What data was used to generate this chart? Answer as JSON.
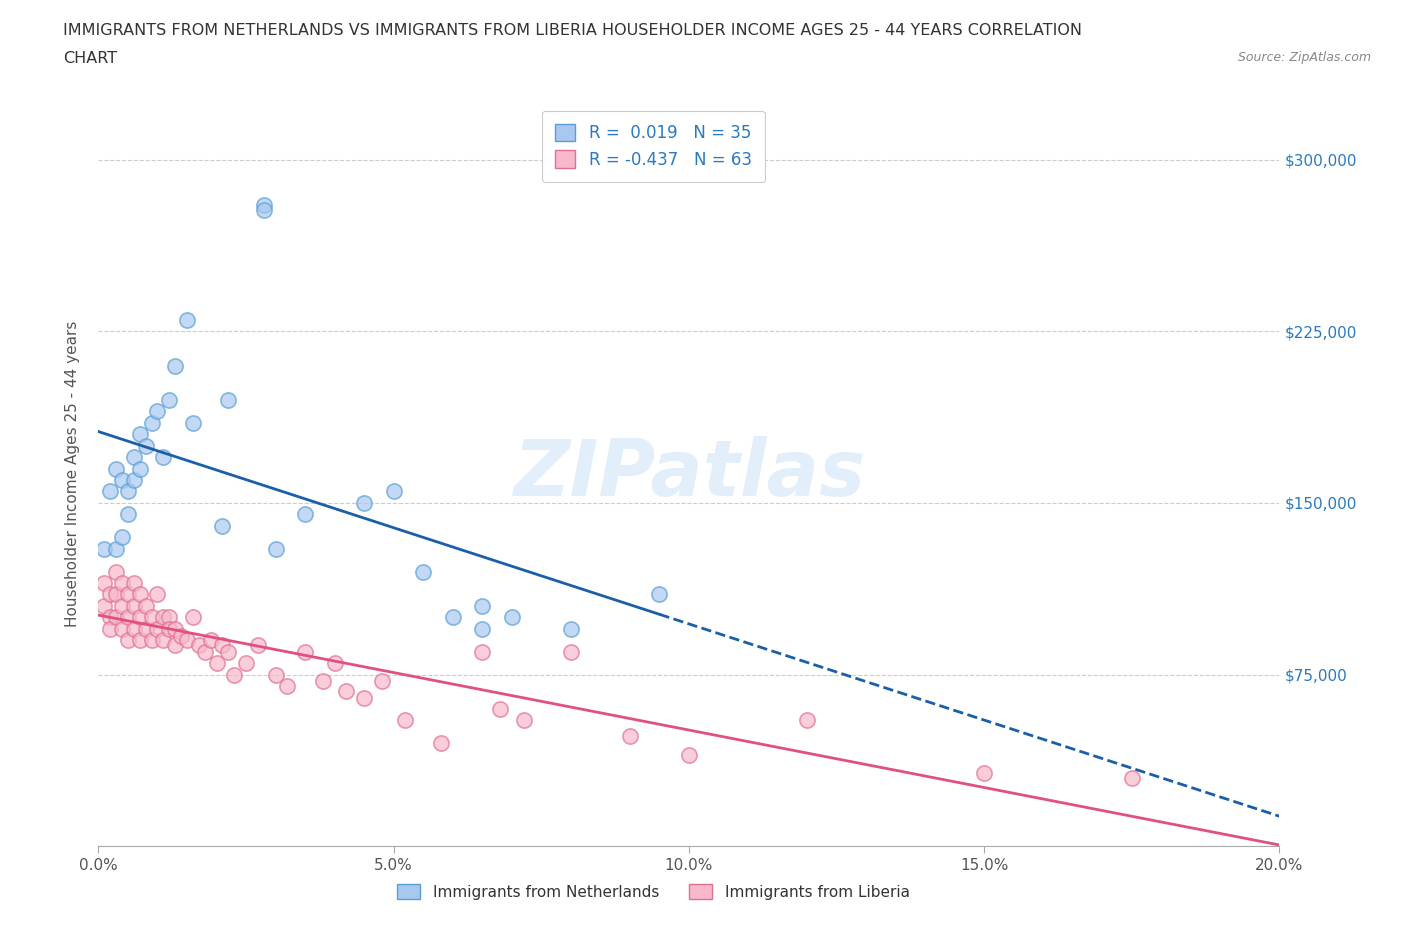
{
  "title_line1": "IMMIGRANTS FROM NETHERLANDS VS IMMIGRANTS FROM LIBERIA HOUSEHOLDER INCOME AGES 25 - 44 YEARS CORRELATION",
  "title_line2": "CHART",
  "source": "Source: ZipAtlas.com",
  "ylabel": "Householder Income Ages 25 - 44 years",
  "xlim": [
    0.0,
    0.2
  ],
  "ylim": [
    0,
    325000
  ],
  "yticks": [
    0,
    75000,
    150000,
    225000,
    300000
  ],
  "ytick_labels": [
    "",
    "$75,000",
    "$150,000",
    "$225,000",
    "$300,000"
  ],
  "xticks": [
    0.0,
    0.05,
    0.1,
    0.15,
    0.2
  ],
  "xtick_labels": [
    "0.0%",
    "5.0%",
    "10.0%",
    "15.0%",
    "20.0%"
  ],
  "netherlands_color": "#a8c8f0",
  "netherlands_edge_color": "#5a9fd4",
  "liberia_color": "#f8b8cc",
  "liberia_edge_color": "#e07090",
  "netherlands_line_color": "#1a5fa8",
  "liberia_line_color": "#e05080",
  "R_netherlands": 0.019,
  "N_netherlands": 35,
  "R_liberia": -0.437,
  "N_liberia": 63,
  "legend_label_netherlands": "Immigrants from Netherlands",
  "legend_label_liberia": "Immigrants from Liberia",
  "watermark": "ZIPatlas",
  "netherlands_x": [
    0.001,
    0.002,
    0.003,
    0.003,
    0.004,
    0.004,
    0.005,
    0.005,
    0.006,
    0.006,
    0.007,
    0.007,
    0.008,
    0.009,
    0.01,
    0.011,
    0.012,
    0.013,
    0.015,
    0.016,
    0.021,
    0.022,
    0.028,
    0.028,
    0.045,
    0.06,
    0.065,
    0.065,
    0.08,
    0.095,
    0.03,
    0.035,
    0.05,
    0.055,
    0.07
  ],
  "netherlands_y": [
    130000,
    155000,
    165000,
    130000,
    160000,
    135000,
    155000,
    145000,
    170000,
    160000,
    180000,
    165000,
    175000,
    185000,
    190000,
    170000,
    195000,
    210000,
    230000,
    185000,
    140000,
    195000,
    280000,
    278000,
    150000,
    100000,
    105000,
    95000,
    95000,
    110000,
    130000,
    145000,
    155000,
    120000,
    100000
  ],
  "liberia_x": [
    0.001,
    0.001,
    0.002,
    0.002,
    0.002,
    0.003,
    0.003,
    0.003,
    0.004,
    0.004,
    0.004,
    0.005,
    0.005,
    0.005,
    0.006,
    0.006,
    0.006,
    0.007,
    0.007,
    0.007,
    0.008,
    0.008,
    0.009,
    0.009,
    0.01,
    0.01,
    0.011,
    0.011,
    0.012,
    0.012,
    0.013,
    0.013,
    0.014,
    0.015,
    0.016,
    0.017,
    0.018,
    0.019,
    0.02,
    0.021,
    0.022,
    0.023,
    0.025,
    0.027,
    0.03,
    0.032,
    0.035,
    0.038,
    0.04,
    0.042,
    0.045,
    0.048,
    0.052,
    0.058,
    0.065,
    0.068,
    0.072,
    0.08,
    0.09,
    0.1,
    0.12,
    0.15,
    0.175
  ],
  "liberia_y": [
    115000,
    105000,
    110000,
    100000,
    95000,
    120000,
    110000,
    100000,
    115000,
    105000,
    95000,
    110000,
    100000,
    90000,
    115000,
    105000,
    95000,
    110000,
    100000,
    90000,
    105000,
    95000,
    100000,
    90000,
    110000,
    95000,
    100000,
    90000,
    100000,
    95000,
    95000,
    88000,
    92000,
    90000,
    100000,
    88000,
    85000,
    90000,
    80000,
    88000,
    85000,
    75000,
    80000,
    88000,
    75000,
    70000,
    85000,
    72000,
    80000,
    68000,
    65000,
    72000,
    55000,
    45000,
    85000,
    60000,
    55000,
    85000,
    48000,
    40000,
    55000,
    32000,
    30000
  ]
}
